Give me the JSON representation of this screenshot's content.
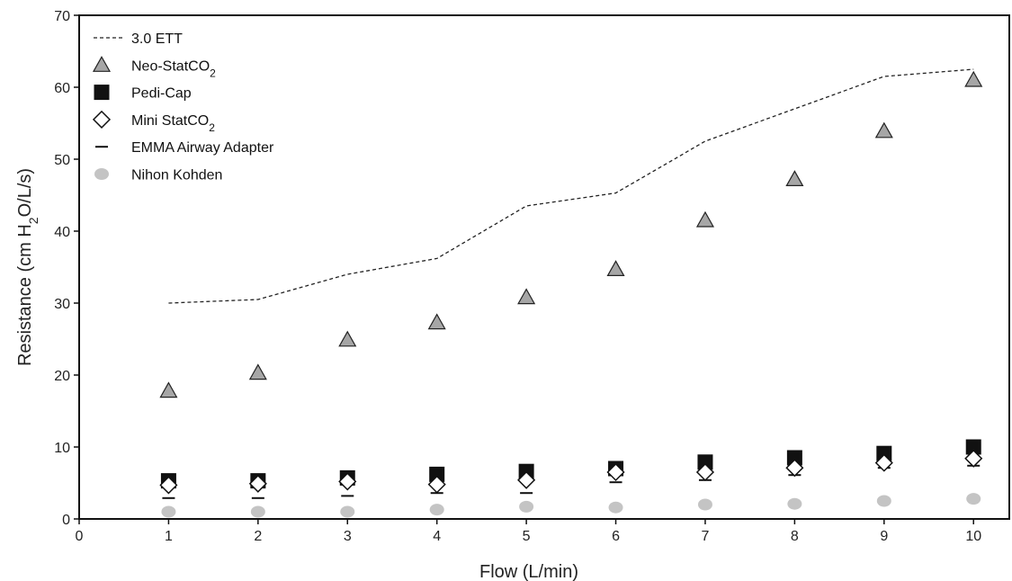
{
  "chart_data": {
    "type": "scatter",
    "title": "",
    "xlabel": "Flow (L/min)",
    "ylabel": {
      "prefix": "Resistance (cm H",
      "sub": "2",
      "suffix": "O/L/s)"
    },
    "xlim": [
      0,
      10.4
    ],
    "ylim": [
      0,
      70
    ],
    "xticks": [
      0,
      1,
      2,
      3,
      4,
      5,
      6,
      7,
      8,
      9,
      10
    ],
    "yticks": [
      0,
      10,
      20,
      30,
      40,
      50,
      60,
      70
    ],
    "grid": false,
    "legend_position": "top-left",
    "x": [
      1,
      2,
      3,
      4,
      5,
      6,
      7,
      8,
      9,
      10
    ],
    "series": [
      {
        "name": "3.0 ETT",
        "marker": "dashed-line",
        "color": "#222222",
        "values": [
          30.0,
          30.5,
          34.0,
          36.2,
          43.5,
          45.3,
          52.5,
          57.0,
          61.5,
          62.5
        ]
      },
      {
        "name": "Neo-StatCO",
        "name_sub": "2",
        "marker": "triangle",
        "color": "#a6a6a6",
        "values": [
          17.8,
          20.3,
          24.9,
          27.3,
          30.8,
          34.7,
          41.5,
          47.2,
          53.9,
          61.0
        ]
      },
      {
        "name": "Pedi-Cap",
        "marker": "square",
        "color": "#111111",
        "values": [
          5.3,
          5.3,
          5.7,
          6.2,
          6.6,
          7.0,
          7.9,
          8.5,
          9.1,
          10.0
        ]
      },
      {
        "name": "Mini StatCO",
        "name_sub": "2",
        "marker": "diamond",
        "color": "#ffffff",
        "values": [
          4.7,
          4.9,
          5.2,
          4.8,
          5.4,
          6.5,
          6.5,
          7.1,
          7.8,
          8.4
        ]
      },
      {
        "name": "EMMA Airway Adapter",
        "marker": "dash",
        "color": "#111111",
        "values": [
          2.9,
          2.9,
          3.2,
          3.6,
          3.6,
          5.1,
          5.4,
          6.1,
          7.1,
          7.4
        ]
      },
      {
        "name": "Nihon Kohden",
        "marker": "circle",
        "color": "#c4c4c4",
        "values": [
          1.0,
          1.0,
          1.0,
          1.3,
          1.7,
          1.6,
          2.0,
          2.1,
          2.5,
          2.8
        ]
      }
    ]
  }
}
